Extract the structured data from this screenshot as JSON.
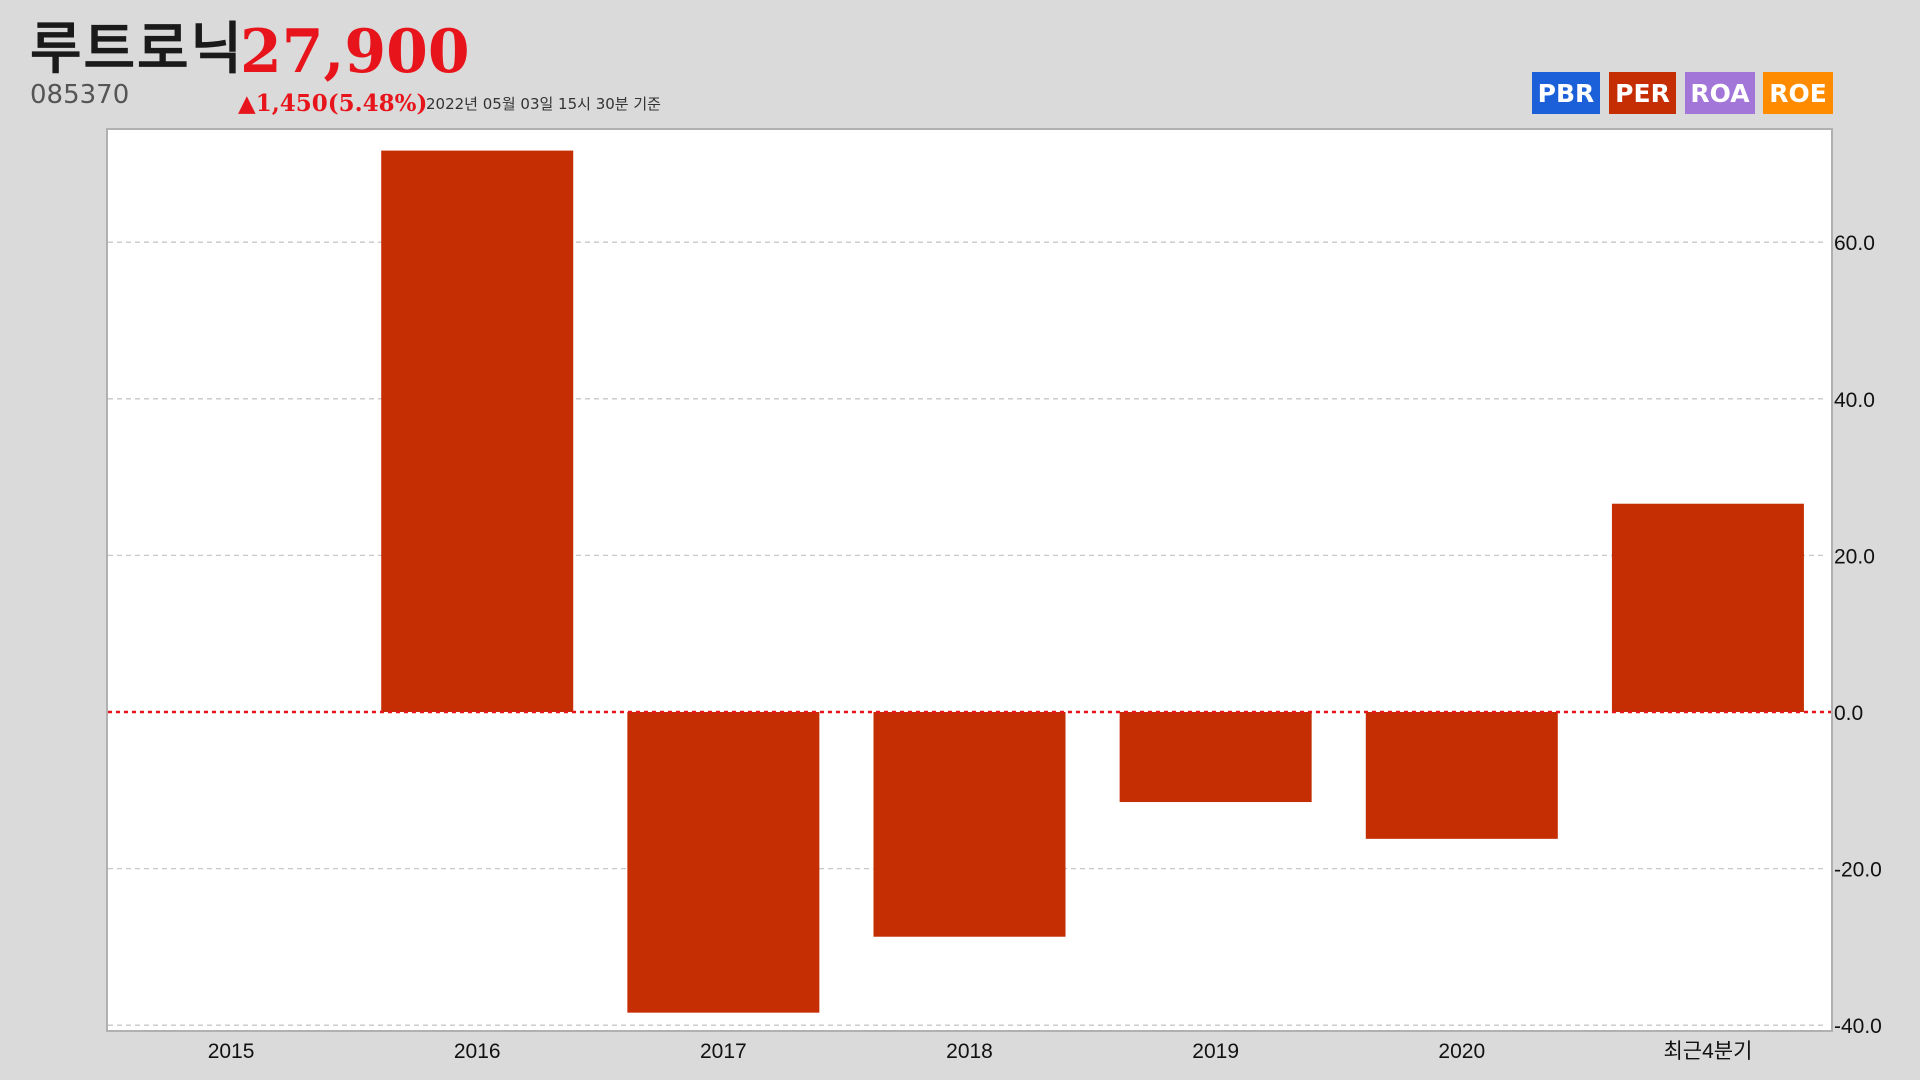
{
  "header": {
    "company_name": "루트로닉",
    "price": "27,900",
    "code": "085370",
    "change": "▲1,450(5.48%)",
    "as_of": "2022년 05월 03일 15시 30분 기준"
  },
  "legend": [
    {
      "label": "PBR",
      "color": "#1b5fd9"
    },
    {
      "label": "PER",
      "color": "#c52d03"
    },
    {
      "label": "ROA",
      "color": "#a176d8"
    },
    {
      "label": "ROE",
      "color": "#ff8c00"
    }
  ],
  "chart_data": {
    "type": "bar",
    "categories": [
      "2015",
      "2016",
      "2017",
      "2018",
      "2019",
      "2020",
      "최근4분기"
    ],
    "series": [
      {
        "name": "PER",
        "color": "#c52d03",
        "values": [
          null,
          71.7,
          -38.4,
          -28.7,
          -11.5,
          -16.2,
          26.6
        ]
      }
    ],
    "yticks": [
      "60.0",
      "40.0",
      "20.0",
      "0.0",
      "-20.0",
      "-40.0"
    ],
    "ylim": [
      -40.5,
      74
    ],
    "y_axis_side": "right",
    "zero_line_color": "#e8141b",
    "grid": true
  }
}
